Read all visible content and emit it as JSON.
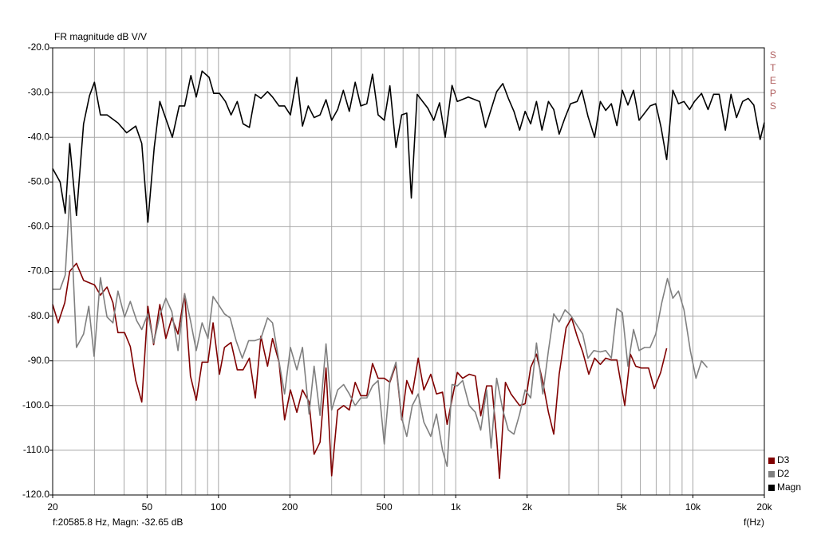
{
  "chart_data": {
    "type": "line",
    "y_label": "FR magnitude dB V/V",
    "x_label": "f(Hz)",
    "annotation": "STEPS",
    "cursor_readout": "f:20585.8 Hz, Magn: -32.65 dB",
    "log_x": true,
    "grid": true,
    "legend_position": "bottom-right",
    "xlim": [
      20,
      20000
    ],
    "ylim": [
      -120,
      -20
    ],
    "xticks": [
      20,
      50,
      100,
      200,
      500,
      {
        "value": 1000,
        "label": "1k"
      },
      {
        "value": 2000,
        "label": "2k"
      },
      {
        "value": 5000,
        "label": "5k"
      },
      {
        "value": 10000,
        "label": "10k"
      },
      {
        "value": 20000,
        "label": "20k"
      }
    ],
    "yticks": [
      {
        "value": -20,
        "label": "-20.0"
      },
      {
        "value": -30,
        "label": "-30.0"
      },
      {
        "value": -40,
        "label": "-40.0"
      },
      {
        "value": -50,
        "label": "-50.0"
      },
      {
        "value": -60,
        "label": "-60.0"
      },
      {
        "value": -70,
        "label": "-70.0"
      },
      {
        "value": -80,
        "label": "-80.0"
      },
      {
        "value": -90,
        "label": "-90.0"
      },
      {
        "value": -100,
        "label": "-100.0"
      },
      {
        "value": -110,
        "label": "-110.0"
      },
      {
        "value": -120,
        "label": "-120.0"
      }
    ],
    "series": [
      {
        "name": "D3",
        "color": "#800000",
        "x": [
          20,
          21.1,
          22.5,
          23.6,
          25.2,
          27,
          28.4,
          30,
          31.8,
          33.9,
          35.9,
          37.7,
          40.2,
          42.5,
          44.8,
          47.5,
          50.4,
          53.3,
          56.6,
          60,
          63.6,
          67.5,
          72,
          76.2,
          80.6,
          85.3,
          90.3,
          94.9,
          101,
          106,
          113,
          120,
          127,
          135,
          143,
          151,
          161,
          169,
          180,
          190,
          201,
          214,
          226,
          241,
          253,
          268,
          284,
          300,
          318,
          337,
          356,
          377,
          398,
          422,
          446,
          471,
          500,
          528,
          560,
          592,
          622,
          656,
          695,
          734,
          785,
          830,
          880,
          920,
          1016,
          1070,
          1140,
          1210,
          1275,
          1350,
          1420,
          1488,
          1530,
          1620,
          1710,
          1860,
          1962,
          2070,
          2190,
          2330,
          2460,
          2590,
          2730,
          2920,
          3080,
          3250,
          3430,
          3640,
          3850,
          4070,
          4290,
          4530,
          4780,
          5160,
          5450,
          5740,
          6060,
          6500,
          6870,
          7310,
          7750
        ],
        "values": [
          -77.4,
          -81.5,
          -77,
          -70,
          -68.2,
          -72,
          -72.5,
          -73,
          -75.3,
          -73.5,
          -77,
          -83.7,
          -83.7,
          -86.8,
          -94.4,
          -99.2,
          -77.8,
          -86.4,
          -77.4,
          -85,
          -80.4,
          -84,
          -75,
          -93.4,
          -98.8,
          -90.3,
          -90.3,
          -81.5,
          -93,
          -87,
          -85.9,
          -92,
          -92,
          -89.4,
          -98.3,
          -84.5,
          -91.2,
          -85,
          -90.3,
          -103.2,
          -96.5,
          -101.5,
          -96.5,
          -99.2,
          -110.9,
          -108.2,
          -91.6,
          -115.7,
          -101,
          -100,
          -101,
          -94.8,
          -97.8,
          -97.8,
          -90.6,
          -93.9,
          -93.9,
          -94.8,
          -90.8,
          -103.2,
          -94.4,
          -97.4,
          -89.4,
          -96.5,
          -93,
          -97.4,
          -97,
          -104.2,
          -92.6,
          -93.9,
          -93,
          -93.4,
          -102.3,
          -95.6,
          -95.6,
          -107.3,
          -116.3,
          -94.8,
          -97.4,
          -100,
          -99.6,
          -91.5,
          -88.5,
          -94.8,
          -101.5,
          -106.4,
          -93,
          -82.6,
          -80.4,
          -84.5,
          -88,
          -93,
          -89.4,
          -90.8,
          -89.4,
          -89.8,
          -89.8,
          -100,
          -88.5,
          -91.2,
          -91.6,
          -91.6,
          -96.2,
          -92.6,
          -87.2
        ]
      },
      {
        "name": "D2",
        "color": "#808080",
        "x": [
          20,
          21.5,
          22.6,
          23.6,
          25.2,
          27,
          28.4,
          29.9,
          31.8,
          33.9,
          35.9,
          37.7,
          40.2,
          42.5,
          45.2,
          47.5,
          50.4,
          53.3,
          56.6,
          60,
          63.6,
          67.5,
          72,
          76.2,
          80.6,
          85.3,
          90.3,
          94.9,
          100,
          106,
          112,
          118.7,
          126,
          134,
          142,
          151,
          161,
          169,
          179,
          190,
          201,
          214,
          226,
          241,
          253,
          268,
          284,
          300,
          318,
          337,
          356,
          377,
          398,
          422,
          446,
          471,
          500,
          528,
          560,
          592,
          622,
          656,
          695,
          734,
          785,
          830,
          880,
          920,
          965,
          1016,
          1070,
          1140,
          1210,
          1275,
          1350,
          1410,
          1488,
          1580,
          1667,
          1760,
          1860,
          1962,
          2070,
          2190,
          2330,
          2460,
          2590,
          2730,
          2890,
          3050,
          3250,
          3430,
          3610,
          3820,
          4070,
          4290,
          4530,
          4780,
          5040,
          5320,
          5620,
          5930,
          6260,
          6600,
          6970,
          7390,
          7810,
          8230,
          8690,
          9170,
          9750,
          10300,
          10870,
          11500
        ],
        "values": [
          -74,
          -74,
          -70.8,
          -53,
          -87,
          -84,
          -77.8,
          -89,
          -71.4,
          -80.2,
          -81.5,
          -74.4,
          -80.2,
          -76.7,
          -81,
          -83,
          -79.5,
          -86,
          -79.8,
          -76,
          -79,
          -87.7,
          -75,
          -81,
          -87.7,
          -81.5,
          -85,
          -75.6,
          -77.4,
          -79.5,
          -80.4,
          -85.5,
          -89.4,
          -85.5,
          -85.5,
          -85,
          -80.4,
          -81.5,
          -89.4,
          -97.4,
          -87,
          -92,
          -87,
          -101.9,
          -91.2,
          -102.2,
          -86.2,
          -101,
          -96.5,
          -95.3,
          -97.4,
          -100,
          -98.3,
          -98.3,
          -95.6,
          -94.4,
          -108.6,
          -94.4,
          -90.3,
          -102.8,
          -106.9,
          -100,
          -97.4,
          -103.7,
          -106.9,
          -101.9,
          -110,
          -113.6,
          -95.3,
          -95.6,
          -94.4,
          -100,
          -101.5,
          -105.5,
          -96.5,
          -109.5,
          -93.9,
          -101,
          -105.5,
          -106.4,
          -101.9,
          -96.5,
          -98.3,
          -86,
          -97.4,
          -87.7,
          -79.5,
          -81.3,
          -78.6,
          -79.8,
          -82.1,
          -84,
          -89.4,
          -87.7,
          -88,
          -87.7,
          -89.4,
          -78.3,
          -79.2,
          -91.2,
          -83,
          -87.7,
          -87,
          -87,
          -84,
          -77,
          -71.6,
          -76,
          -74.4,
          -78.6,
          -87.7,
          -93.9,
          -90,
          -91.5
        ]
      },
      {
        "name": "Magn",
        "color": "#000000",
        "x": [
          20,
          21.5,
          22.6,
          23.6,
          25.2,
          27,
          28.6,
          30,
          31.8,
          33.9,
          37.7,
          41,
          44.8,
          47.5,
          50.4,
          53.6,
          56.6,
          63.9,
          68.3,
          72,
          76.5,
          80.6,
          85.3,
          91.3,
          95.5,
          101,
          107,
          113,
          120,
          127,
          135,
          143,
          151,
          161,
          169,
          180,
          190,
          201,
          214,
          226,
          239,
          253,
          268,
          284,
          300,
          318,
          336,
          356,
          377,
          398,
          422,
          446,
          471,
          500,
          528,
          560,
          592,
          622,
          650,
          688,
          763,
          808,
          855,
          903,
          965,
          1016,
          1130,
          1261,
          1335,
          1488,
          1580,
          1667,
          1760,
          1860,
          1962,
          2070,
          2190,
          2310,
          2460,
          2590,
          2730,
          2890,
          3050,
          3250,
          3400,
          3610,
          3850,
          4070,
          4290,
          4530,
          4780,
          5040,
          5320,
          5620,
          5930,
          6600,
          6970,
          7340,
          7750,
          8230,
          8690,
          9170,
          9680,
          10150,
          10870,
          11580,
          12220,
          12900,
          13700,
          14470,
          15270,
          16200,
          17100,
          18060,
          19200,
          20000
        ],
        "values": [
          -47,
          -50,
          -57,
          -41.4,
          -57.5,
          -37,
          -30.7,
          -27.7,
          -35,
          -35,
          -36.8,
          -39,
          -37.5,
          -41.4,
          -59,
          -42.3,
          -32,
          -40,
          -33,
          -33,
          -26.2,
          -31,
          -25.2,
          -26.6,
          -30.2,
          -30.2,
          -32,
          -35,
          -32,
          -37,
          -37.8,
          -30.4,
          -31.3,
          -29.8,
          -31,
          -33,
          -33,
          -35,
          -26.6,
          -37.5,
          -33,
          -35.6,
          -35,
          -31.6,
          -36.2,
          -33.8,
          -29.5,
          -34.2,
          -27.7,
          -33,
          -32.5,
          -25.9,
          -35,
          -36.2,
          -28.5,
          -42.3,
          -35,
          -34.6,
          -53.6,
          -30.4,
          -33.5,
          -36.2,
          -32.3,
          -40,
          -28.4,
          -32,
          -31,
          -32,
          -37.8,
          -29.8,
          -28,
          -31.3,
          -34.2,
          -38.4,
          -34.2,
          -37,
          -32,
          -38.4,
          -32,
          -33.8,
          -39.3,
          -35.6,
          -32.5,
          -32,
          -29.5,
          -35.3,
          -40,
          -32,
          -34,
          -32.5,
          -37.4,
          -29.5,
          -32.8,
          -29.5,
          -36.2,
          -33,
          -32.5,
          -37.8,
          -45,
          -29.5,
          -32.5,
          -32,
          -33.8,
          -32,
          -30.2,
          -33.8,
          -30.4,
          -30.4,
          -38.4,
          -30.4,
          -35.6,
          -32,
          -31.3,
          -32.8,
          -40.5,
          -36.7
        ]
      }
    ]
  }
}
